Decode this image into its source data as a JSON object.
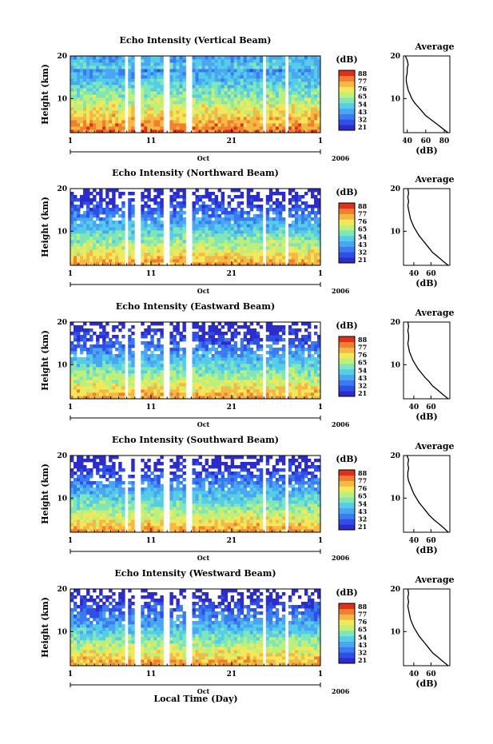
{
  "colormap": [
    "#2c2cc8",
    "#2f4fe6",
    "#3a7bf0",
    "#4aa6f2",
    "#55cde8",
    "#7ee6b8",
    "#bdf07a",
    "#f4e85a",
    "#f4b844",
    "#f08030",
    "#e0301c"
  ],
  "gap_days": [
    7.6,
    8.2,
    9.0,
    9.7,
    12.7,
    13.3,
    15.3,
    16.0,
    24.8,
    25.4,
    27.5,
    28.0
  ],
  "bottom_label": "Local Time (Day)",
  "chart_data": [
    {
      "type": "heatmap",
      "title": "Echo Intensity (Vertical Beam)",
      "ylabel": "Height (km)",
      "xlim": [
        1,
        32
      ],
      "ylim": [
        2,
        20
      ],
      "x_ticks": [
        "1",
        "11",
        "21",
        "1"
      ],
      "y_ticks": [
        "20",
        "10"
      ],
      "month_label": "Oct",
      "year_label": "2006",
      "colorbar": {
        "unit": "(dB)",
        "levels": [
          "88",
          "77",
          "76",
          "65",
          "54",
          "43",
          "32",
          "21"
        ]
      },
      "profile": {
        "title": "Average",
        "xlabel": "(dB)",
        "x_ticks": [
          "40",
          "60",
          "80"
        ],
        "y_ticks": [
          "20",
          "10"
        ],
        "xlim": [
          36,
          86
        ],
        "ylim": [
          2,
          20
        ],
        "heights": [
          2,
          3,
          4,
          5,
          6,
          7,
          8,
          9,
          10,
          11,
          12,
          13,
          14,
          15,
          16,
          17,
          18,
          19,
          20
        ],
        "values": [
          84,
          78,
          72,
          66,
          60,
          56,
          52,
          48,
          45,
          43,
          41,
          40,
          39,
          39,
          40,
          40,
          41,
          40,
          38
        ]
      }
    },
    {
      "type": "heatmap",
      "title": "Echo Intensity (Northward Beam)",
      "ylabel": "Height (km)",
      "xlim": [
        1,
        32
      ],
      "ylim": [
        2,
        20
      ],
      "x_ticks": [
        "1",
        "11",
        "21",
        "1"
      ],
      "y_ticks": [
        "20",
        "10"
      ],
      "month_label": "Oct",
      "year_label": "2006",
      "colorbar": {
        "unit": "(dB)",
        "levels": [
          "88",
          "77",
          "76",
          "65",
          "54",
          "43",
          "32",
          "21"
        ]
      },
      "profile": {
        "title": "Average",
        "xlabel": "(dB)",
        "x_ticks": [
          "40",
          "60"
        ],
        "y_ticks": [
          "20",
          "10"
        ],
        "xlim": [
          28,
          82
        ],
        "ylim": [
          2,
          20
        ],
        "heights": [
          2,
          3,
          4,
          5,
          6,
          7,
          8,
          9,
          10,
          11,
          12,
          13,
          14,
          15,
          16,
          17,
          18,
          19,
          20
        ],
        "values": [
          80,
          74,
          68,
          62,
          58,
          54,
          50,
          46,
          43,
          40,
          38,
          36,
          35,
          34,
          33,
          34,
          33,
          34,
          33
        ]
      }
    },
    {
      "type": "heatmap",
      "title": "Echo Intensity (Eastward Beam)",
      "ylabel": "Height (km)",
      "xlim": [
        1,
        32
      ],
      "ylim": [
        2,
        20
      ],
      "x_ticks": [
        "1",
        "11",
        "21",
        "1"
      ],
      "y_ticks": [
        "20",
        "10"
      ],
      "month_label": "Oct",
      "year_label": "2006",
      "colorbar": {
        "unit": "(dB)",
        "levels": [
          "88",
          "77",
          "76",
          "65",
          "54",
          "43",
          "32",
          "21"
        ]
      },
      "profile": {
        "title": "Average",
        "xlabel": "(dB)",
        "x_ticks": [
          "40",
          "60"
        ],
        "y_ticks": [
          "20",
          "10"
        ],
        "xlim": [
          28,
          82
        ],
        "ylim": [
          2,
          20
        ],
        "heights": [
          2,
          3,
          4,
          5,
          6,
          7,
          8,
          9,
          10,
          11,
          12,
          13,
          14,
          15,
          16,
          17,
          18,
          19,
          20
        ],
        "values": [
          80,
          74,
          68,
          62,
          58,
          53,
          49,
          45,
          42,
          39,
          37,
          35,
          34,
          33,
          34,
          34,
          33,
          34,
          33
        ]
      }
    },
    {
      "type": "heatmap",
      "title": "Echo Intensity (Southward Beam)",
      "ylabel": "Height (km)",
      "xlim": [
        1,
        32
      ],
      "ylim": [
        2,
        20
      ],
      "x_ticks": [
        "1",
        "11",
        "21",
        "1"
      ],
      "y_ticks": [
        "20",
        "10"
      ],
      "month_label": "Oct",
      "year_label": "2006",
      "colorbar": {
        "unit": "(dB)",
        "levels": [
          "88",
          "77",
          "76",
          "65",
          "54",
          "43",
          "32",
          "21"
        ]
      },
      "profile": {
        "title": "Average",
        "xlabel": "(dB)",
        "x_ticks": [
          "40",
          "60"
        ],
        "y_ticks": [
          "20",
          "10"
        ],
        "xlim": [
          28,
          82
        ],
        "ylim": [
          2,
          20
        ],
        "heights": [
          2,
          3,
          4,
          5,
          6,
          7,
          8,
          9,
          10,
          11,
          12,
          13,
          14,
          15,
          16,
          17,
          18,
          19,
          20
        ],
        "values": [
          80,
          75,
          69,
          63,
          58,
          54,
          50,
          46,
          43,
          40,
          38,
          36,
          34,
          33,
          33,
          34,
          33,
          34,
          32
        ]
      }
    },
    {
      "type": "heatmap",
      "title": "Echo Intensity (Westward Beam)",
      "ylabel": "Height (km)",
      "xlim": [
        1,
        32
      ],
      "ylim": [
        2,
        20
      ],
      "x_ticks": [
        "1",
        "11",
        "21",
        "1"
      ],
      "y_ticks": [
        "20",
        "10"
      ],
      "month_label": "Oct",
      "year_label": "2006",
      "colorbar": {
        "unit": "(dB)",
        "levels": [
          "88",
          "77",
          "76",
          "65",
          "54",
          "43",
          "32",
          "21"
        ]
      },
      "profile": {
        "title": "Average",
        "xlabel": "(dB)",
        "x_ticks": [
          "40",
          "60"
        ],
        "y_ticks": [
          "20",
          "10"
        ],
        "xlim": [
          28,
          82
        ],
        "ylim": [
          2,
          20
        ],
        "heights": [
          2,
          3,
          4,
          5,
          6,
          7,
          8,
          9,
          10,
          11,
          12,
          13,
          14,
          15,
          16,
          17,
          18,
          19,
          20
        ],
        "values": [
          80,
          74,
          68,
          62,
          58,
          54,
          50,
          46,
          43,
          40,
          38,
          36,
          35,
          34,
          33,
          34,
          33,
          34,
          33
        ]
      }
    }
  ]
}
